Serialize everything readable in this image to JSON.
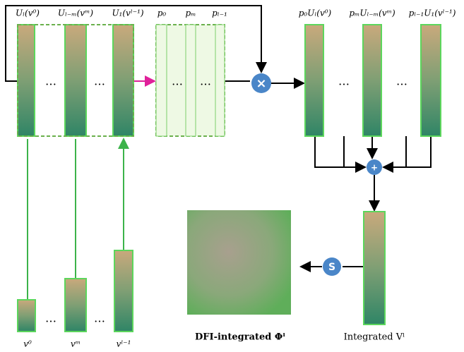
{
  "input_labels": [
    "Uₗ(v⁰)",
    "Uₗ₋ₘ(vᵐ)",
    "U₁(vˡ⁻¹)"
  ],
  "weight_labels": [
    "p₀",
    "pₘ",
    "pₗ₋₁"
  ],
  "weighted_labels": [
    "p₀Uₗ(v⁰)",
    "pₘUₗ₋ₘ(vᵐ)",
    "pₗ₋₁U₁(vˡ⁻¹)"
  ],
  "bottom_labels": [
    "v⁰",
    "vᵐ",
    "vˡ⁻¹"
  ],
  "ellipsis": "…",
  "multiply_symbol": "×",
  "add_symbol": "+",
  "s_symbol": "S",
  "integrated_label": "Integrated Vˡ",
  "output_label": "DFI-integrated Φˡ"
}
